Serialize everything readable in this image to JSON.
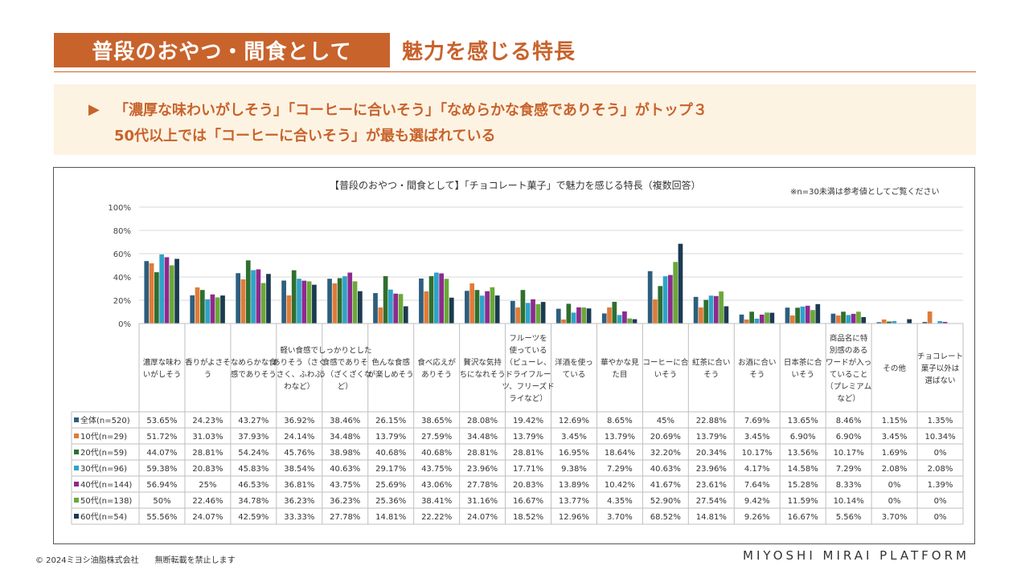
{
  "header": {
    "title_main": "普段のおやつ・間食として",
    "title_sub": "魅力を感じる特長"
  },
  "summary": {
    "arrow": "▶",
    "line1": "「濃厚な味わいがしそう」「コーヒーに合いそう」「なめらかな食感でありそう」がトップ３",
    "line2": "50代以上では「コーヒーに合いそう」が最も選ばれている"
  },
  "colors": {
    "accent": "#c8632c",
    "summary_bg": "#fdf3e3"
  },
  "footer": {
    "copyright": "© 2024ミヨシ油脂株式会社　　無断転載を禁止します",
    "brand": "MIYOSHI MIRAI PLATFORM"
  },
  "chart_data": {
    "type": "bar",
    "title": "【普段のおやつ・間食として】「チョコレート菓子」で魅力を感じる特長（複数回答）",
    "note": "※n=30未満は参考値としてご覧ください",
    "ylim": [
      0,
      100
    ],
    "y_ticks": [
      "0%",
      "20%",
      "40%",
      "60%",
      "80%",
      "100%"
    ],
    "categories": [
      [
        "濃厚な味わ",
        "いがしそう"
      ],
      [
        "香りがよさそ",
        "う"
      ],
      [
        "なめらかな食",
        "感でありそう"
      ],
      [
        "軽い食感で",
        "ありそう（さく",
        "さく、ふわふ",
        "わなど）"
      ],
      [
        "しっかりとした",
        "食感でありそ",
        "う（ざくざくな",
        "ど）"
      ],
      [
        "色んな食感",
        "が楽しめそう"
      ],
      [
        "食べ応えが",
        "ありそう"
      ],
      [
        "贅沢な気持",
        "ちになれそう"
      ],
      [
        "フルーツを",
        "使っている",
        "（ピューレ、",
        "ドライフルー",
        "ツ、フリーズド",
        "ライなど）"
      ],
      [
        "洋酒を使っ",
        "ている"
      ],
      [
        "華やかな見",
        "た目"
      ],
      [
        "コーヒーに合",
        "いそう"
      ],
      [
        "紅茶に合い",
        "そう"
      ],
      [
        "お酒に合い",
        "そう"
      ],
      [
        "日本茶に合",
        "いそう"
      ],
      [
        "商品名に特",
        "別感のある",
        "ワードが入っ",
        "ていること",
        "（プレミアム",
        "など）"
      ],
      [
        "その他"
      ],
      [
        "チョコレート",
        "菓子以外は",
        "選ばない"
      ]
    ],
    "series": [
      {
        "name": "全体(n=520)",
        "color": "#2e5e7e",
        "values": [
          53.65,
          24.23,
          43.27,
          36.92,
          38.46,
          26.15,
          38.65,
          28.08,
          19.42,
          12.69,
          8.65,
          45,
          22.88,
          7.69,
          13.65,
          8.46,
          1.15,
          1.35
        ],
        "labels": [
          "53.65%",
          "24.23%",
          "43.27%",
          "36.92%",
          "38.46%",
          "26.15%",
          "38.65%",
          "28.08%",
          "19.42%",
          "12.69%",
          "8.65%",
          "45%",
          "22.88%",
          "7.69%",
          "13.65%",
          "8.46%",
          "1.15%",
          "1.35%"
        ]
      },
      {
        "name": "10代(n=29)",
        "color": "#e07b39",
        "values": [
          51.72,
          31.03,
          37.93,
          24.14,
          34.48,
          13.79,
          27.59,
          34.48,
          13.79,
          3.45,
          13.79,
          20.69,
          13.79,
          3.45,
          6.9,
          6.9,
          3.45,
          10.34
        ],
        "labels": [
          "51.72%",
          "31.03%",
          "37.93%",
          "24.14%",
          "34.48%",
          "13.79%",
          "27.59%",
          "34.48%",
          "13.79%",
          "3.45%",
          "13.79%",
          "20.69%",
          "13.79%",
          "3.45%",
          "6.90%",
          "6.90%",
          "3.45%",
          "10.34%"
        ]
      },
      {
        "name": "20代(n=59)",
        "color": "#2f6f2f",
        "values": [
          44.07,
          28.81,
          54.24,
          45.76,
          38.98,
          40.68,
          40.68,
          28.81,
          28.81,
          16.95,
          18.64,
          32.2,
          20.34,
          10.17,
          13.56,
          10.17,
          1.69,
          0
        ],
        "labels": [
          "44.07%",
          "28.81%",
          "54.24%",
          "45.76%",
          "38.98%",
          "40.68%",
          "40.68%",
          "28.81%",
          "28.81%",
          "16.95%",
          "18.64%",
          "32.20%",
          "20.34%",
          "10.17%",
          "13.56%",
          "10.17%",
          "1.69%",
          "0%"
        ]
      },
      {
        "name": "30代(n=96)",
        "color": "#2fa3c9",
        "values": [
          59.38,
          20.83,
          45.83,
          38.54,
          40.63,
          29.17,
          43.75,
          23.96,
          17.71,
          9.38,
          7.29,
          40.63,
          23.96,
          4.17,
          14.58,
          7.29,
          2.08,
          2.08
        ],
        "labels": [
          "59.38%",
          "20.83%",
          "45.83%",
          "38.54%",
          "40.63%",
          "29.17%",
          "43.75%",
          "23.96%",
          "17.71%",
          "9.38%",
          "7.29%",
          "40.63%",
          "23.96%",
          "4.17%",
          "14.58%",
          "7.29%",
          "2.08%",
          "2.08%"
        ]
      },
      {
        "name": "40代(n=144)",
        "color": "#8e2a8e",
        "values": [
          56.94,
          25,
          46.53,
          36.81,
          43.75,
          25.69,
          43.06,
          27.78,
          20.83,
          13.89,
          10.42,
          41.67,
          23.61,
          7.64,
          15.28,
          8.33,
          0,
          1.39
        ],
        "labels": [
          "56.94%",
          "25%",
          "46.53%",
          "36.81%",
          "43.75%",
          "25.69%",
          "43.06%",
          "27.78%",
          "20.83%",
          "13.89%",
          "10.42%",
          "41.67%",
          "23.61%",
          "7.64%",
          "15.28%",
          "8.33%",
          "0%",
          "1.39%"
        ]
      },
      {
        "name": "50代(n=138)",
        "color": "#6aa83a",
        "values": [
          50,
          22.46,
          34.78,
          36.23,
          36.23,
          25.36,
          38.41,
          31.16,
          16.67,
          13.77,
          4.35,
          52.9,
          27.54,
          9.42,
          11.59,
          10.14,
          0,
          0
        ],
        "labels": [
          "50%",
          "22.46%",
          "34.78%",
          "36.23%",
          "36.23%",
          "25.36%",
          "38.41%",
          "31.16%",
          "16.67%",
          "13.77%",
          "4.35%",
          "52.90%",
          "27.54%",
          "9.42%",
          "11.59%",
          "10.14%",
          "0%",
          "0%"
        ]
      },
      {
        "name": "60代(n=54)",
        "color": "#1b3a52",
        "values": [
          55.56,
          24.07,
          42.59,
          33.33,
          27.78,
          14.81,
          22.22,
          24.07,
          18.52,
          12.96,
          3.7,
          68.52,
          14.81,
          9.26,
          16.67,
          5.56,
          3.7,
          0
        ],
        "labels": [
          "55.56%",
          "24.07%",
          "42.59%",
          "33.33%",
          "27.78%",
          "14.81%",
          "22.22%",
          "24.07%",
          "18.52%",
          "12.96%",
          "3.70%",
          "68.52%",
          "14.81%",
          "9.26%",
          "16.67%",
          "5.56%",
          "3.70%",
          "0%"
        ]
      }
    ]
  }
}
